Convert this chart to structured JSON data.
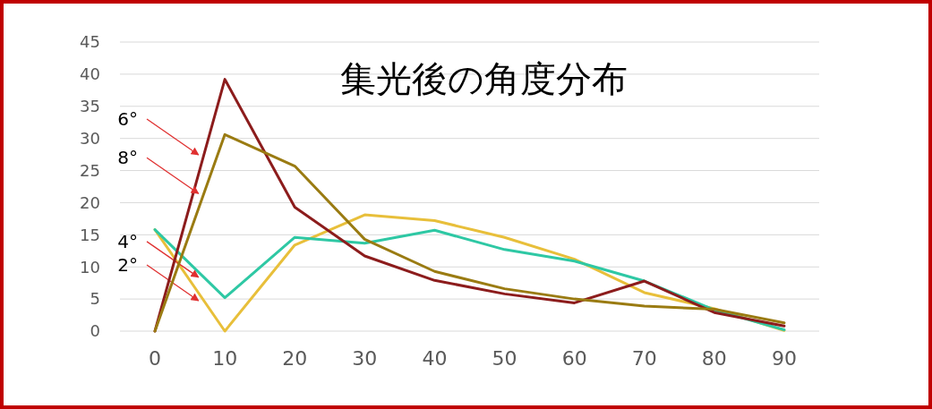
{
  "chart_data": {
    "type": "line",
    "title": "集光後の角度分布",
    "x": [
      0,
      10,
      20,
      30,
      40,
      50,
      60,
      70,
      80,
      90
    ],
    "xlim": [
      -5,
      95
    ],
    "xticks": [
      0,
      10,
      20,
      30,
      40,
      50,
      60,
      70,
      80,
      90
    ],
    "ylim": [
      0,
      45
    ],
    "yticks": [
      0,
      5,
      10,
      15,
      20,
      25,
      30,
      35,
      40,
      45
    ],
    "grid": "y",
    "marker": "none",
    "line_style": "solid",
    "series": [
      {
        "name": "2°",
        "color": "#e8bf3a",
        "values": [
          15.8,
          0,
          13.4,
          18.1,
          17.2,
          14.6,
          11.2,
          6.0,
          3.5,
          0.1
        ]
      },
      {
        "name": "4°",
        "color": "#2ec8a4",
        "values": [
          15.8,
          5.2,
          14.6,
          13.7,
          15.7,
          12.7,
          10.9,
          7.8,
          3.3,
          0.2
        ]
      },
      {
        "name": "6°",
        "color": "#8c1c1c",
        "values": [
          0,
          39.2,
          19.3,
          11.7,
          7.9,
          5.8,
          4.4,
          7.8,
          2.9,
          0.8
        ]
      },
      {
        "name": "8°",
        "color": "#9a7b12",
        "values": [
          0,
          30.6,
          25.7,
          14.3,
          9.3,
          6.6,
          5.0,
          3.9,
          3.4,
          1.3
        ]
      }
    ]
  }
}
